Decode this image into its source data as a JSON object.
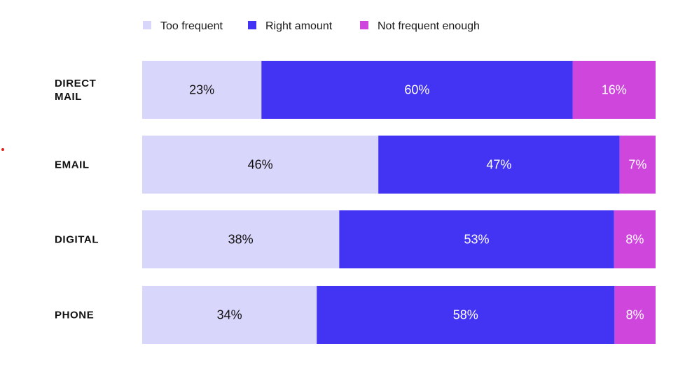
{
  "colors": {
    "too_frequent": "#d9d6fc",
    "right_amount": "#4333f2",
    "not_frequent_enough": "#cf46dd",
    "dark_text": "#111111",
    "light_text": "#ffffff",
    "stray_dot": "#e0211b"
  },
  "chart_data": {
    "type": "bar",
    "orientation": "horizontal",
    "stacked": true,
    "categories": [
      [
        "DIRECT",
        "MAIL"
      ],
      [
        "EMAIL"
      ],
      [
        "DIGITAL"
      ],
      [
        "PHONE"
      ]
    ],
    "series": [
      {
        "name": "Too frequent",
        "color_key": "too_frequent",
        "text_color_key": "dark_text",
        "values": [
          23,
          46,
          38,
          34
        ]
      },
      {
        "name": "Right amount",
        "color_key": "right_amount",
        "text_color_key": "light_text",
        "values": [
          60,
          47,
          53,
          58
        ]
      },
      {
        "name": "Not frequent enough",
        "color_key": "not_frequent_enough",
        "text_color_key": "light_text",
        "values": [
          16,
          7,
          8,
          8
        ]
      }
    ],
    "value_suffix": "%",
    "legend_position": "top",
    "grid": false
  }
}
